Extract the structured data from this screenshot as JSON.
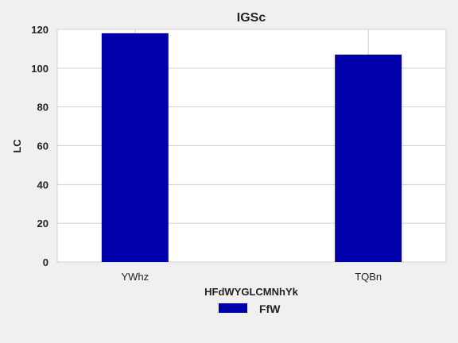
{
  "chart_data": {
    "type": "bar",
    "title": "IGSc",
    "xlabel": "HFdWYGLCMNhYk",
    "ylabel": "LC",
    "categories": [
      "YWhz",
      "TQBn"
    ],
    "series": [
      {
        "name": "FfW",
        "values": [
          118,
          107
        ],
        "color": "#0000aa"
      }
    ],
    "ylim": [
      0,
      120
    ],
    "yticks": [
      0,
      20,
      40,
      60,
      80,
      100,
      120
    ],
    "grid": true,
    "legend_position": "bottom-center",
    "colors": {
      "background": "#f0f0f0",
      "plot_background": "#ffffff",
      "grid": "#d0d0d0",
      "bar": "#0000aa"
    }
  }
}
